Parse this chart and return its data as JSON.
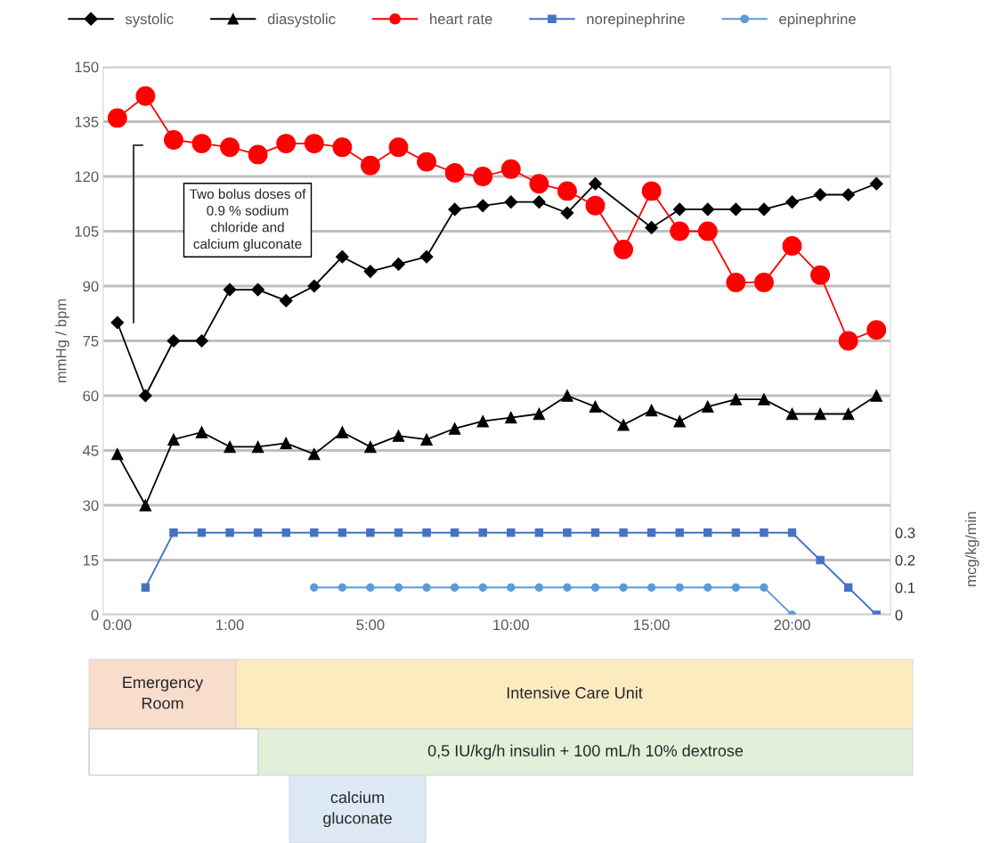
{
  "chart_data": {
    "type": "line",
    "categories": [
      "0:00",
      null,
      null,
      null,
      "1:00",
      null,
      null,
      null,
      null,
      "5:00",
      null,
      null,
      null,
      null,
      "10:00",
      null,
      null,
      null,
      null,
      "15:00",
      null,
      null,
      null,
      null,
      "20:00",
      null,
      null,
      null
    ],
    "series": [
      {
        "name": "systolic",
        "color": "#000000",
        "marker": "diamond",
        "values": [
          80,
          60,
          75,
          75,
          89,
          89,
          86,
          90,
          98,
          94,
          96,
          98,
          111,
          112,
          113,
          113,
          110,
          118,
          null,
          106,
          111,
          111,
          111,
          111,
          113,
          115,
          115,
          118
        ]
      },
      {
        "name": "diasystolic",
        "color": "#000000",
        "marker": "triangle",
        "values": [
          44,
          30,
          48,
          50,
          46,
          46,
          47,
          44,
          50,
          46,
          49,
          48,
          51,
          53,
          54,
          55,
          60,
          57,
          52,
          56,
          53,
          57,
          59,
          59,
          55,
          55,
          55,
          60
        ]
      },
      {
        "name": "heart rate",
        "color": "#ff0000",
        "marker": "circle",
        "values": [
          136,
          142,
          130,
          129,
          128,
          126,
          129,
          129,
          128,
          123,
          128,
          124,
          121,
          120,
          122,
          118,
          116,
          112,
          100,
          116,
          105,
          105,
          91,
          91,
          101,
          93,
          75,
          78
        ]
      },
      {
        "name": "norepinephrine",
        "color": "#4472c4",
        "marker": "square",
        "axis": "y2",
        "values": [
          null,
          0.1,
          0.3,
          0.3,
          0.3,
          0.3,
          0.3,
          0.3,
          0.3,
          0.3,
          0.3,
          0.3,
          0.3,
          0.3,
          0.3,
          0.3,
          0.3,
          0.3,
          0.3,
          0.3,
          0.3,
          0.3,
          0.3,
          0.3,
          0.3,
          0.2,
          0.1,
          0
        ]
      },
      {
        "name": "epinephrine",
        "color": "#5b9bd5",
        "marker": "circle",
        "axis": "y2",
        "values": [
          null,
          null,
          null,
          null,
          null,
          null,
          null,
          0.1,
          0.1,
          0.1,
          0.1,
          0.1,
          0.1,
          0.1,
          0.1,
          0.1,
          0.1,
          0.1,
          0.1,
          0.1,
          0.1,
          0.1,
          0.1,
          0.1,
          0,
          null,
          null,
          null
        ]
      }
    ],
    "ylabel": "mmHg / bpm",
    "y2label": "mcg/kg/min",
    "ylim": [
      0,
      150
    ],
    "yticks": [
      0,
      15,
      30,
      45,
      60,
      75,
      90,
      105,
      120,
      135,
      150
    ],
    "y2lim": [
      0,
      2
    ],
    "y2ticks": [
      0,
      0.1,
      0.2,
      0.3
    ],
    "grid": "y",
    "legend": "top",
    "annotations": [
      "Two bolus doses of\n0.9 % sodium\nchloride and\ncalcium gluconate",
      "Emergency\nRoom",
      "Intensive Care Unit",
      "0,5 IU/kg/h insulin + 100 mL/h 10% dextrose",
      "calcium\ngluconate"
    ]
  }
}
